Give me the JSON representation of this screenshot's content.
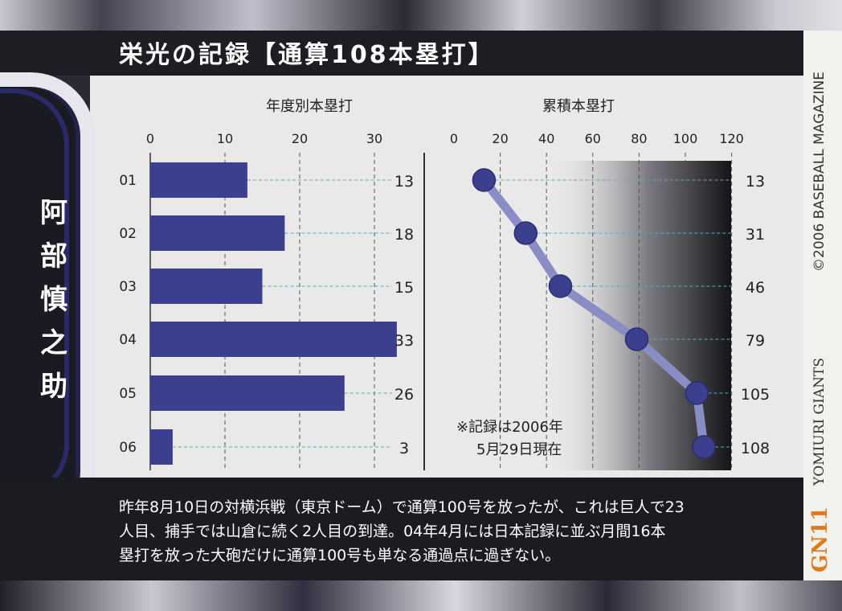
{
  "card": {
    "title": "栄光の記録【通算108本塁打】",
    "player_name": [
      "阿",
      "部",
      "慎",
      "之",
      "助"
    ],
    "side_copyright": "©2006 BASEBALL MAGAZINE",
    "side_team": "YOMIURI GIANTS",
    "card_code": "GN11",
    "description": [
      "昨年8月10日の対横浜戦（東京ドーム）で通算100号を放ったが、これは巨人で23",
      "人目、捕手では山倉に続く2人目の到達。04年4月には日本記録に並ぶ月間16本",
      "塁打を放った大砲だけに通算100号も単なる通過点に過ぎない。"
    ],
    "note": [
      "※記録は2006年",
      "5月29日現在"
    ]
  },
  "colors": {
    "bar": "#3b3f8e",
    "line": "#8a8cc4",
    "marker": "#3b3f8e",
    "accent_orange": "#e0781e"
  },
  "chart_data": [
    {
      "type": "bar",
      "title": "年度別本塁打",
      "categories": [
        "01",
        "02",
        "03",
        "04",
        "05",
        "06"
      ],
      "values": [
        13,
        18,
        15,
        33,
        26,
        3
      ],
      "xlim": [
        0,
        35
      ],
      "ticks": [
        0,
        10,
        20,
        30
      ],
      "orientation": "horizontal",
      "grid": true
    },
    {
      "type": "line",
      "title": "累積本塁打",
      "categories": [
        "01",
        "02",
        "03",
        "04",
        "05",
        "06"
      ],
      "values": [
        13,
        31,
        46,
        79,
        105,
        108
      ],
      "xlim": [
        0,
        120
      ],
      "ticks": [
        0,
        20,
        40,
        60,
        80,
        100,
        120
      ],
      "grid": true
    }
  ]
}
